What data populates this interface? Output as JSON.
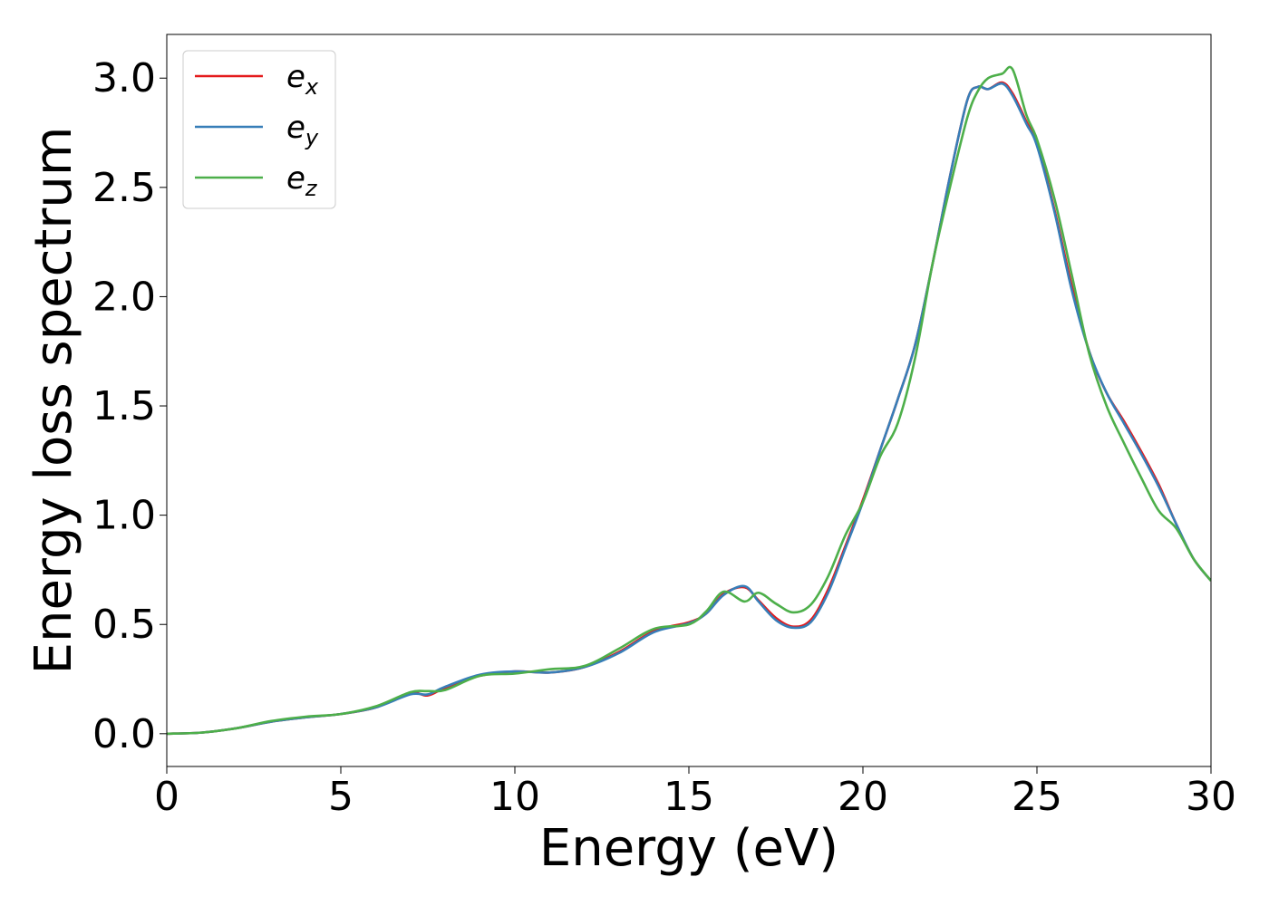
{
  "chart_data": {
    "type": "line",
    "xlabel": "Energy (eV)",
    "ylabel": "Energy loss spectrum",
    "xlim": [
      0,
      30
    ],
    "ylim": [
      -0.15,
      3.2
    ],
    "xticks": [
      0,
      5,
      10,
      15,
      20,
      25,
      30
    ],
    "yticks": [
      0.0,
      0.5,
      1.0,
      1.5,
      2.0,
      2.5,
      3.0
    ],
    "xtick_labels": [
      "0",
      "5",
      "10",
      "15",
      "20",
      "25",
      "30"
    ],
    "ytick_labels": [
      "0.0",
      "0.5",
      "1.0",
      "1.5",
      "2.0",
      "2.5",
      "3.0"
    ],
    "grid": false,
    "legend_position": "top-left",
    "series": [
      {
        "name": "e_x",
        "label_base": "e",
        "label_sub": "x",
        "color": "#e41a1c",
        "x": [
          0,
          1,
          2,
          3,
          4,
          5,
          6,
          7,
          7.5,
          8,
          9,
          10,
          11,
          12,
          13,
          14,
          15,
          15.5,
          16,
          16.6,
          17,
          17.5,
          18,
          18.5,
          19,
          19.5,
          20,
          20.5,
          21,
          21.5,
          22,
          22.5,
          23,
          23.3,
          23.6,
          24,
          24.3,
          24.7,
          25,
          25.5,
          26,
          26.5,
          27,
          27.5,
          28,
          28.5,
          29,
          29.5,
          30
        ],
        "y": [
          0.0,
          0.005,
          0.025,
          0.055,
          0.075,
          0.09,
          0.12,
          0.185,
          0.175,
          0.21,
          0.265,
          0.285,
          0.28,
          0.305,
          0.375,
          0.47,
          0.51,
          0.55,
          0.64,
          0.67,
          0.61,
          0.53,
          0.49,
          0.52,
          0.66,
          0.86,
          1.07,
          1.3,
          1.53,
          1.78,
          2.15,
          2.55,
          2.9,
          2.96,
          2.95,
          2.98,
          2.93,
          2.8,
          2.7,
          2.4,
          2.05,
          1.75,
          1.56,
          1.43,
          1.29,
          1.14,
          0.96,
          0.8,
          0.7
        ]
      },
      {
        "name": "e_y",
        "label_base": "e",
        "label_sub": "y",
        "color": "#377eb8",
        "x": [
          0,
          1,
          2,
          3,
          4,
          5,
          6,
          7,
          7.5,
          8,
          9,
          10,
          11,
          12,
          13,
          14,
          15,
          15.5,
          16,
          16.6,
          17,
          17.5,
          18,
          18.5,
          19,
          19.5,
          20,
          20.5,
          21,
          21.5,
          22,
          22.5,
          23,
          23.3,
          23.6,
          24,
          24.3,
          24.7,
          25,
          25.5,
          26,
          26.5,
          27,
          27.5,
          28,
          28.5,
          29,
          29.5,
          30
        ],
        "y": [
          0.0,
          0.005,
          0.025,
          0.055,
          0.075,
          0.09,
          0.12,
          0.18,
          0.18,
          0.215,
          0.27,
          0.285,
          0.28,
          0.305,
          0.37,
          0.465,
          0.505,
          0.55,
          0.635,
          0.675,
          0.605,
          0.52,
          0.485,
          0.51,
          0.645,
          0.85,
          1.06,
          1.3,
          1.53,
          1.78,
          2.15,
          2.55,
          2.9,
          2.96,
          2.95,
          2.975,
          2.92,
          2.79,
          2.69,
          2.39,
          2.03,
          1.75,
          1.56,
          1.42,
          1.28,
          1.13,
          0.96,
          0.8,
          0.7
        ]
      },
      {
        "name": "e_z",
        "label_base": "e",
        "label_sub": "z",
        "color": "#4daf4a",
        "x": [
          0,
          1,
          2,
          3,
          4,
          5,
          6,
          7,
          7.5,
          8,
          9,
          10,
          11,
          12,
          13,
          14,
          15,
          15.5,
          16,
          16.6,
          17,
          17.5,
          18,
          18.5,
          19,
          19.5,
          20,
          20.5,
          21,
          21.5,
          22,
          22.5,
          23,
          23.3,
          23.6,
          24,
          24.3,
          24.7,
          25,
          25.5,
          26,
          26.5,
          27,
          27.5,
          28,
          28.5,
          29,
          29.5,
          30
        ],
        "y": [
          0.0,
          0.005,
          0.025,
          0.058,
          0.078,
          0.09,
          0.125,
          0.19,
          0.195,
          0.2,
          0.265,
          0.275,
          0.295,
          0.31,
          0.39,
          0.48,
          0.5,
          0.56,
          0.65,
          0.605,
          0.645,
          0.595,
          0.555,
          0.59,
          0.72,
          0.91,
          1.06,
          1.27,
          1.42,
          1.72,
          2.15,
          2.5,
          2.82,
          2.94,
          3.0,
          3.02,
          3.04,
          2.83,
          2.72,
          2.45,
          2.1,
          1.74,
          1.5,
          1.33,
          1.17,
          1.02,
          0.94,
          0.8,
          0.7
        ]
      }
    ]
  }
}
